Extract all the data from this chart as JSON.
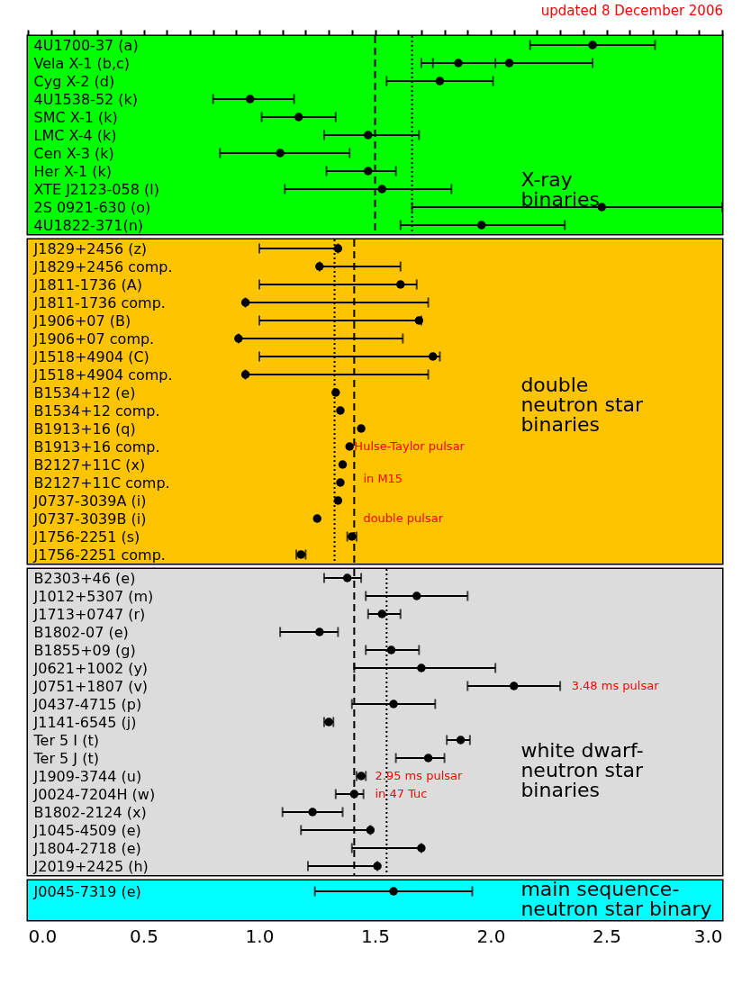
{
  "chart_data": [
    {
      "type": "scatter",
      "orientation": "horizontal",
      "title": "updated 8 December 2006",
      "tick_labels": "y",
      "marker": "circle",
      "categories": [
        "4U1700-37 (a)",
        "Vela X-1 (b,c)",
        "Cyg X-2 (d)",
        "4U1538-52 (k)",
        "SMC X-1 (k)",
        "LMC X-4 (k)",
        "Cen X-3 (k)",
        "Her X-1 (k)",
        "XTE J2123-058 (l)",
        "2S 0921-630 (o)",
        "4U1822-371(n)"
      ],
      "series": [
        {
          "color": "#000000",
          "values": [
            2.44,
            1.86,
            1.78,
            0.96,
            1.17,
            1.47,
            1.09,
            1.47,
            1.53,
            2.48,
            1.96
          ],
          "errors": [
            [
              2.17,
              2.71
            ],
            [
              1.7,
              2.02
            ],
            [
              1.55,
              2.01
            ],
            [
              0.8,
              1.15
            ],
            [
              1.01,
              1.33
            ],
            [
              1.28,
              1.69
            ],
            [
              0.83,
              1.39
            ],
            [
              1.29,
              1.59
            ],
            [
              1.11,
              1.83
            ],
            [
              1.66,
              3.0
            ],
            [
              1.61,
              2.32
            ]
          ]
        },
        {
          "color": "#000000",
          "values": [
            null,
            2.08,
            null,
            null,
            null,
            null,
            null,
            null,
            null,
            null,
            null
          ],
          "errors": [
            null,
            [
              1.75,
              2.44
            ],
            null,
            null,
            null,
            null,
            null,
            null,
            null,
            null,
            null
          ]
        }
      ],
      "xlim": [
        0,
        3
      ],
      "xticks": [
        {
          "value": 0,
          "label": null
        },
        {
          "value": 0.1,
          "label": null
        },
        {
          "value": 0.2,
          "label": null
        },
        {
          "value": 0.3,
          "label": null
        },
        {
          "value": 0.4,
          "label": null
        },
        {
          "value": 0.5,
          "label": null
        },
        {
          "value": 0.6,
          "label": null
        },
        {
          "value": 0.7,
          "label": null
        },
        {
          "value": 0.8,
          "label": null
        },
        {
          "value": 0.9,
          "label": null
        },
        {
          "value": 1,
          "label": null
        },
        {
          "value": 1.1,
          "label": null
        },
        {
          "value": 1.2,
          "label": null
        },
        {
          "value": 1.3,
          "label": null
        },
        {
          "value": 1.4,
          "label": null
        },
        {
          "value": 1.5,
          "label": null
        },
        {
          "value": 1.6,
          "label": null
        },
        {
          "value": 1.7,
          "label": null
        },
        {
          "value": 1.8,
          "label": null
        },
        {
          "value": 1.9,
          "label": null
        },
        {
          "value": 2,
          "label": null
        },
        {
          "value": 2.1,
          "label": null
        },
        {
          "value": 2.2,
          "label": null
        },
        {
          "value": 2.3,
          "label": null
        },
        {
          "value": 2.4,
          "label": null
        },
        {
          "value": 2.5,
          "label": null
        },
        {
          "value": 2.6,
          "label": null
        },
        {
          "value": 2.7,
          "label": null
        },
        {
          "value": 2.8,
          "label": null
        },
        {
          "value": 2.9,
          "label": null
        },
        {
          "value": 3,
          "label": null
        }
      ],
      "bands": [
        {
          "axis": "x",
          "from": 0,
          "to": 3,
          "color": "#00ff00"
        }
      ],
      "ref_lines": [
        {
          "axis": "x",
          "value": 1.5,
          "line_style": "dashed"
        },
        {
          "axis": "x",
          "value": 1.66,
          "line_style": "dotted"
        }
      ],
      "annotations": [
        "X-ray\nbinaries"
      ]
    },
    {
      "type": "scatter",
      "orientation": "horizontal",
      "tick_labels": "y",
      "marker": "circle",
      "categories": [
        "J1829+2456 (z)",
        "J1829+2456 comp.",
        "J1811-1736 (A)",
        "J1811-1736 comp.",
        "J1906+07 (B)",
        "J1906+07 comp.",
        "J1518+4904 (C)",
        "J1518+4904 comp.",
        "B1534+12 (e)",
        "B1534+12 comp.",
        "B1913+16 (q)",
        "B1913+16 comp.",
        "B2127+11C (x)",
        "B2127+11C comp.",
        "J0737-3039A (i)",
        "J0737-3039B (i)",
        "J1756-2251 (s)",
        "J1756-2251 comp."
      ],
      "series": [
        {
          "color": "#000000",
          "values": [
            1.34,
            1.26,
            1.61,
            0.94,
            1.69,
            0.91,
            1.75,
            0.94,
            1.33,
            1.35,
            1.44,
            1.39,
            1.36,
            1.35,
            1.34,
            1.25,
            1.4,
            1.18
          ],
          "errors": [
            [
              1.0,
              1.34
            ],
            [
              1.26,
              1.61
            ],
            [
              1.0,
              1.68
            ],
            [
              0.94,
              1.73
            ],
            [
              1.0,
              1.7
            ],
            [
              0.91,
              1.62
            ],
            [
              1.0,
              1.78
            ],
            [
              0.94,
              1.73
            ],
            null,
            null,
            null,
            null,
            null,
            null,
            null,
            null,
            [
              1.38,
              1.42
            ],
            [
              1.16,
              1.2
            ]
          ]
        }
      ],
      "xlim": [
        0,
        3
      ],
      "bands": [
        {
          "axis": "x",
          "from": 0,
          "to": 3,
          "color": "#ffc400"
        }
      ],
      "ref_lines": [
        {
          "axis": "x",
          "value": 1.41,
          "line_style": "dashed"
        },
        {
          "axis": "x",
          "value": 1.325,
          "line_style": "dotted"
        }
      ],
      "annotations": [
        "double\nneutron star\nbinaries",
        "Hulse-Taylor pulsar",
        "in M15",
        "double pulsar"
      ]
    },
    {
      "type": "scatter",
      "orientation": "horizontal",
      "tick_labels": "y",
      "marker": "circle",
      "categories": [
        "B2303+46 (e)",
        "J1012+5307 (m)",
        "J1713+0747 (r)",
        "B1802-07 (e)",
        "B1855+09 (g)",
        "J0621+1002 (y)",
        "J0751+1807 (v)",
        "J0437-4715 (p)",
        "J1141-6545 (j)",
        "Ter 5 I (t)",
        "Ter 5 J (t)",
        "J1909-3744 (u)",
        "J0024-7204H (w)",
        "B1802-2124 (x)",
        "J1045-4509 (e)",
        "J1804-2718 (e)",
        "J2019+2425 (h)"
      ],
      "series": [
        {
          "color": "#000000",
          "values": [
            1.38,
            1.68,
            1.53,
            1.26,
            1.57,
            1.7,
            2.1,
            1.58,
            1.3,
            1.87,
            1.73,
            1.44,
            1.41,
            1.23,
            1.48,
            1.7,
            1.51
          ],
          "errors": [
            [
              1.28,
              1.44
            ],
            [
              1.46,
              1.9
            ],
            [
              1.47,
              1.61
            ],
            [
              1.09,
              1.34
            ],
            [
              1.46,
              1.69
            ],
            [
              1.41,
              2.02
            ],
            [
              1.9,
              2.3
            ],
            [
              1.4,
              1.76
            ],
            [
              1.28,
              1.32
            ],
            [
              1.81,
              1.91
            ],
            [
              1.59,
              1.8
            ],
            [
              1.42,
              1.46
            ],
            [
              1.33,
              1.45
            ],
            [
              1.1,
              1.36
            ],
            [
              1.18,
              1.48
            ],
            [
              1.4,
              1.7
            ],
            [
              1.21,
              1.51
            ]
          ]
        }
      ],
      "xlim": [
        0,
        3
      ],
      "bands": [
        {
          "axis": "x",
          "from": 0,
          "to": 3,
          "color": "#dcdcdc"
        }
      ],
      "ref_lines": [
        {
          "axis": "x",
          "value": 1.41,
          "line_style": "dashed"
        },
        {
          "axis": "x",
          "value": 1.55,
          "line_style": "dotted"
        }
      ],
      "annotations": [
        "white dwarf-\nneutron star\nbinaries",
        "3.48 ms pulsar",
        "2.95 ms pulsar",
        "in 47 Tuc"
      ]
    },
    {
      "type": "scatter",
      "orientation": "horizontal",
      "marker": "circle",
      "categories": [
        "J0045-7319 (e)"
      ],
      "series": [
        {
          "color": "#000000",
          "values": [
            1.58
          ],
          "errors": [
            [
              1.24,
              1.92
            ]
          ]
        }
      ],
      "xlim": [
        0,
        3
      ],
      "xticks": [
        {
          "value": 0,
          "label": "0.0"
        },
        {
          "value": 0.5,
          "label": "0.5"
        },
        {
          "value": 1,
          "label": "1.0"
        },
        {
          "value": 1.5,
          "label": "1.5"
        },
        {
          "value": 2,
          "label": "2.0"
        },
        {
          "value": 2.5,
          "label": "2.5"
        },
        {
          "value": 3,
          "label": "3.0"
        }
      ],
      "bands": [
        {
          "axis": "x",
          "from": 0,
          "to": 3,
          "color": "#00ffff"
        }
      ],
      "annotations": [
        "main sequence-\nneutron star binary"
      ]
    }
  ]
}
